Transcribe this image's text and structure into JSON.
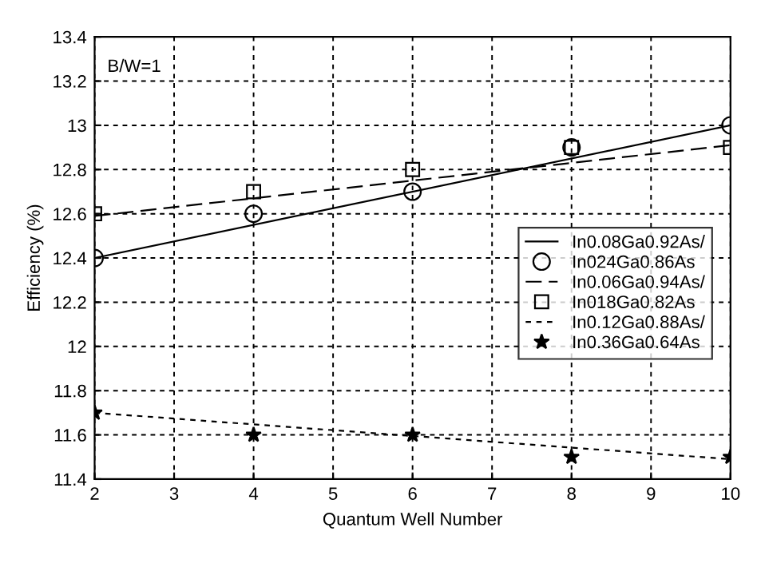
{
  "chart_data": {
    "type": "line",
    "xlabel": "Quantum Well Number",
    "ylabel": "Efficiency (%)",
    "annotations": [
      "B/W=1"
    ],
    "xlim": [
      2,
      10
    ],
    "xticks": [
      2,
      3,
      4,
      5,
      6,
      7,
      8,
      9,
      10
    ],
    "ylim": [
      11.4,
      13.4
    ],
    "yticks": [
      11.4,
      11.6,
      11.8,
      12,
      12.2,
      12.4,
      12.6,
      12.8,
      13,
      13.2,
      13.4
    ],
    "grid": true,
    "legend": "center right",
    "series": [
      {
        "name": "In0.08Ga0.92As/",
        "color": "#000000",
        "line_style": "solid",
        "marker": "none",
        "x": [
          2,
          10
        ],
        "values": [
          12.4,
          13.0
        ]
      },
      {
        "name": "In024Ga0.86As",
        "type": "scatter",
        "color": "#000000",
        "marker": "circle",
        "x": [
          2,
          4,
          6,
          8,
          10
        ],
        "values": [
          12.4,
          12.6,
          12.7,
          12.9,
          13.0
        ]
      },
      {
        "name": "In0.06Ga0.94As/",
        "color": "#000000",
        "line_style": "dashed",
        "marker": "none",
        "x": [
          2,
          10
        ],
        "values": [
          12.59,
          12.91
        ]
      },
      {
        "name": "In018Ga0.82As",
        "type": "scatter",
        "color": "#000000",
        "marker": "square",
        "x": [
          2,
          4,
          6,
          8,
          10
        ],
        "values": [
          12.6,
          12.7,
          12.8,
          12.9,
          12.9
        ]
      },
      {
        "name": "In0.12Ga0.88As/",
        "color": "#000000",
        "line_style": "dotted",
        "marker": "none",
        "x": [
          2,
          10
        ],
        "values": [
          11.7,
          11.49
        ]
      },
      {
        "name": "In0.36Ga0.64As",
        "type": "scatter",
        "color": "#000000",
        "marker": "star",
        "x": [
          2,
          4,
          6,
          8,
          10
        ],
        "values": [
          11.7,
          11.6,
          11.6,
          11.5,
          11.5
        ]
      }
    ]
  }
}
